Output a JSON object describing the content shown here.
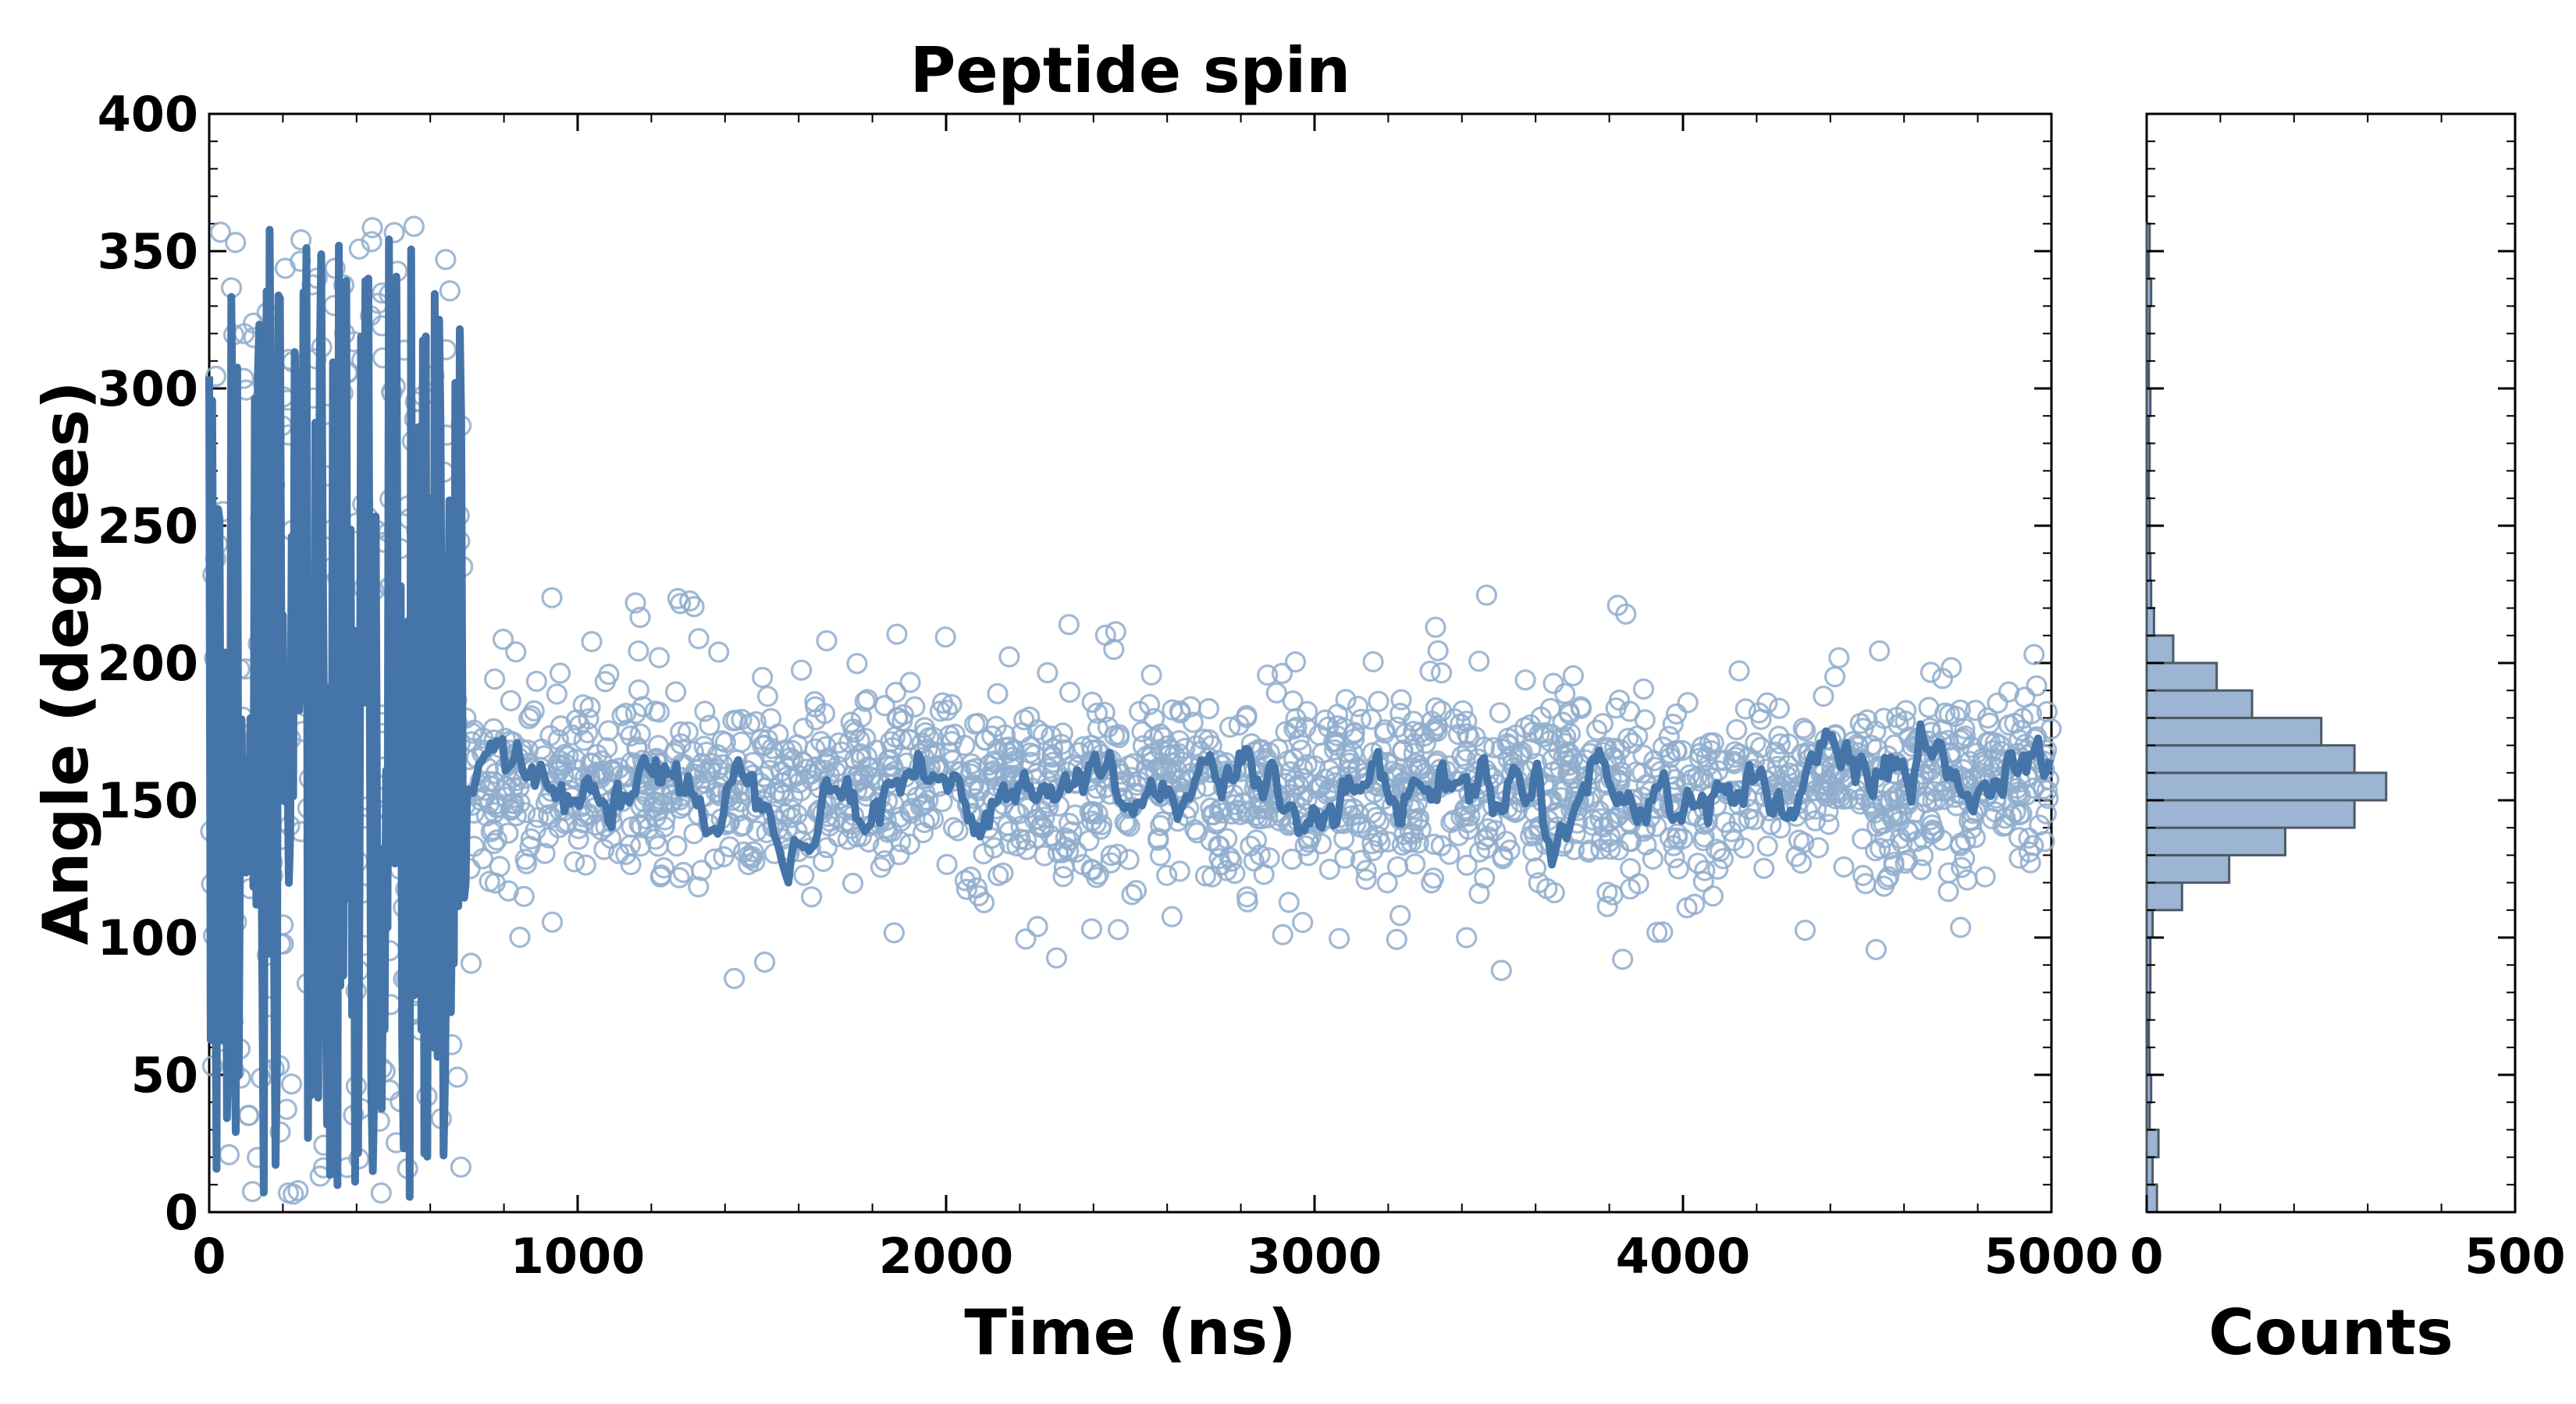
{
  "chart_data": [
    {
      "type": "scatter",
      "title": "Peptide spin",
      "xlabel": "Time (ns)",
      "ylabel": "Angle (degrees)",
      "xlim": [
        0,
        5000
      ],
      "ylim": [
        0,
        400
      ],
      "xticks": [
        0,
        1000,
        2000,
        3000,
        4000,
        5000
      ],
      "yticks": [
        0,
        50,
        100,
        150,
        200,
        250,
        300,
        350,
        400
      ],
      "grid": false,
      "legend": "none",
      "colors": {
        "line": "#4575a8",
        "marker_edge": "#8fadcc"
      },
      "series": [
        {
          "kind": "scatter-open-circles",
          "segments": [
            {
              "x_range": [
                0,
                700
              ],
              "center": 180,
              "spread": 180,
              "density_per_ns": 0.35
            },
            {
              "x_range": [
                700,
                5000
              ],
              "center": 155,
              "spread": 22,
              "density_per_ns": 0.45
            }
          ]
        },
        {
          "kind": "line-running-average",
          "segments": [
            {
              "x_range": [
                0,
                700
              ],
              "min": 5,
              "max": 360
            },
            {
              "x_range": [
                700,
                5000
              ],
              "center": 155,
              "amplitude": 10
            }
          ]
        }
      ]
    },
    {
      "type": "bar",
      "orientation": "horizontal",
      "xlabel": "Counts",
      "ylabel": "",
      "xlim": [
        0,
        500
      ],
      "ylim": [
        0,
        400
      ],
      "xticks": [
        0,
        500
      ],
      "colors": {
        "fill": "#9bb5d2",
        "edge": "#4d5a66"
      },
      "bin_width": 10,
      "bins": [
        {
          "y0": 0,
          "count": 14
        },
        {
          "y0": 10,
          "count": 8
        },
        {
          "y0": 20,
          "count": 16
        },
        {
          "y0": 30,
          "count": 4
        },
        {
          "y0": 40,
          "count": 6
        },
        {
          "y0": 50,
          "count": 4
        },
        {
          "y0": 60,
          "count": 3
        },
        {
          "y0": 70,
          "count": 4
        },
        {
          "y0": 80,
          "count": 5
        },
        {
          "y0": 90,
          "count": 5
        },
        {
          "y0": 100,
          "count": 8
        },
        {
          "y0": 110,
          "count": 48
        },
        {
          "y0": 120,
          "count": 112
        },
        {
          "y0": 130,
          "count": 188
        },
        {
          "y0": 140,
          "count": 282
        },
        {
          "y0": 150,
          "count": 325
        },
        {
          "y0": 160,
          "count": 282
        },
        {
          "y0": 170,
          "count": 237
        },
        {
          "y0": 180,
          "count": 143
        },
        {
          "y0": 190,
          "count": 95
        },
        {
          "y0": 200,
          "count": 36
        },
        {
          "y0": 210,
          "count": 10
        },
        {
          "y0": 220,
          "count": 6
        },
        {
          "y0": 230,
          "count": 5
        },
        {
          "y0": 240,
          "count": 4
        },
        {
          "y0": 250,
          "count": 4
        },
        {
          "y0": 260,
          "count": 3
        },
        {
          "y0": 270,
          "count": 4
        },
        {
          "y0": 280,
          "count": 3
        },
        {
          "y0": 290,
          "count": 5
        },
        {
          "y0": 300,
          "count": 3
        },
        {
          "y0": 310,
          "count": 4
        },
        {
          "y0": 320,
          "count": 4
        },
        {
          "y0": 330,
          "count": 6
        },
        {
          "y0": 340,
          "count": 3
        },
        {
          "y0": 350,
          "count": 4
        }
      ]
    }
  ]
}
